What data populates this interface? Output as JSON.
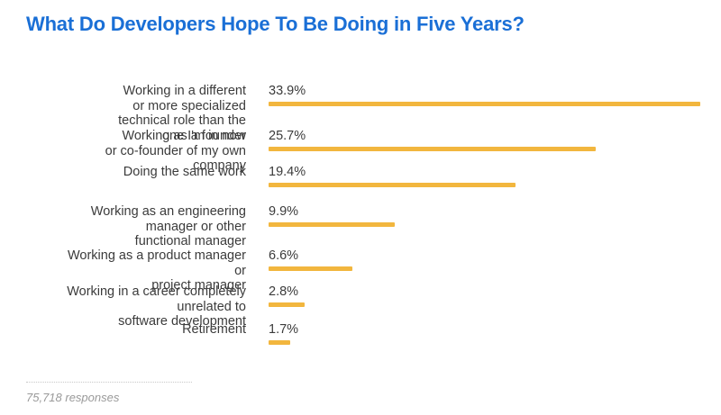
{
  "chart_data": {
    "type": "bar",
    "orientation": "horizontal",
    "title": "What Do Developers Hope To Be Doing in Five Years?",
    "categories": [
      "Working in a different or more specialized technical role than the one I'm in now",
      "Working as a founder or co-founder of my own company",
      "Doing the same work",
      "Working as an engineering manager or other functional manager",
      "Working as a product manager or project manager",
      "Working in a career completely unrelated to software development",
      "Retirement"
    ],
    "values": [
      33.9,
      25.7,
      19.4,
      9.9,
      6.6,
      2.8,
      1.7
    ],
    "value_labels": [
      "33.9%",
      "25.7%",
      "19.4%",
      "9.9%",
      "6.6%",
      "2.8%",
      "1.7%"
    ],
    "xlabel": "",
    "ylabel": "",
    "xlim": [
      0,
      33.9
    ],
    "grid": false,
    "bar_color": "#f2b63e",
    "title_color": "#1a6fd6",
    "footnote": "75,718 responses"
  }
}
